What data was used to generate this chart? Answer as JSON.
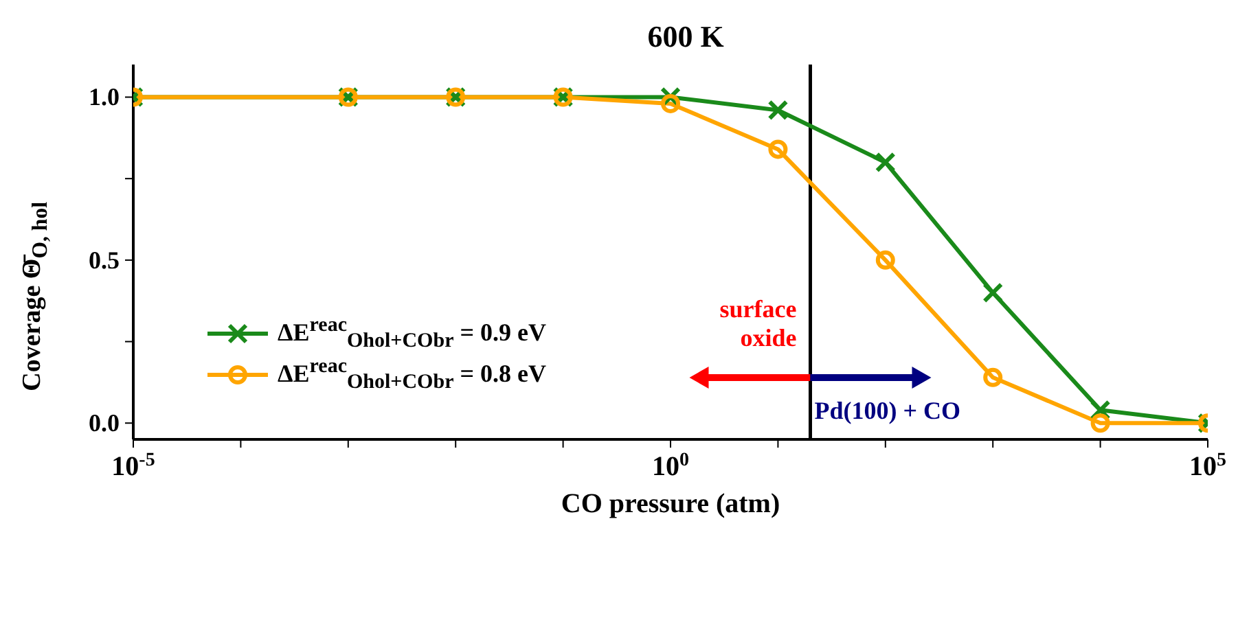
{
  "chart_data": {
    "type": "line",
    "title": "600 K",
    "xlabel": "CO pressure (atm)",
    "ylabel": "Coverage Θ̄$_{O, hol}$",
    "log": "x",
    "xlim": [
      1e-05,
      100000
    ],
    "ylim": [
      -0.05,
      1.1
    ],
    "xticks": [
      {
        "value": 1e-05,
        "label": "10$^{-5}$"
      },
      {
        "value": 0.0001,
        "label": null
      },
      {
        "value": 0.001,
        "label": null
      },
      {
        "value": 0.01,
        "label": null
      },
      {
        "value": 0.1,
        "label": null
      },
      {
        "value": 1,
        "label": "10$^{0}$"
      },
      {
        "value": 10,
        "label": null
      },
      {
        "value": 100,
        "label": null
      },
      {
        "value": 1000,
        "label": null
      },
      {
        "value": 10000,
        "label": null
      },
      {
        "value": 100000,
        "label": "10$^{5}$"
      }
    ],
    "yticks": [
      {
        "value": 0,
        "label": "0.0"
      },
      {
        "value": 0.25,
        "label": null
      },
      {
        "value": 0.5,
        "label": "0.5"
      },
      {
        "value": 0.75,
        "label": null
      },
      {
        "value": 1,
        "label": "1.0"
      }
    ],
    "x": [
      1e-05,
      0.001,
      0.01,
      0.1,
      1,
      10,
      100,
      1000,
      10000,
      100000
    ],
    "series": [
      {
        "name": "ΔE$^{reac}$$_{Ohol+CObr}$ = 0.9 eV",
        "color": "#1a8a1a",
        "marker": "cross",
        "values": [
          1,
          1,
          1,
          1,
          1,
          0.96,
          0.8,
          0.4,
          0.04,
          0
        ]
      },
      {
        "name": "ΔE$^{reac}$$_{Ohol+CObr}$ = 0.8 eV",
        "color": "#ffa500",
        "marker": "circle",
        "values": [
          1,
          1,
          1,
          1,
          0.98,
          0.84,
          0.5,
          0.14,
          0,
          0
        ]
      }
    ],
    "ref_lines": [
      {
        "axis": "x",
        "value": 20,
        "color": "#000000"
      }
    ],
    "annotations": [
      "surface oxide",
      "Pd(100) + CO"
    ],
    "legend": "center left",
    "grid": false
  }
}
